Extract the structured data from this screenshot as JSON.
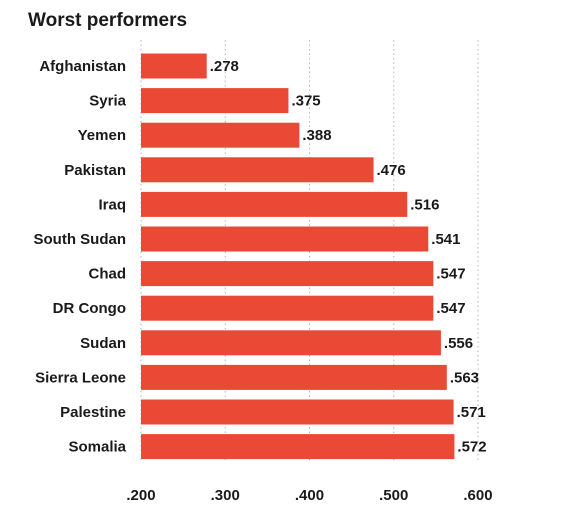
{
  "chart_data": {
    "type": "bar",
    "orientation": "horizontal",
    "title": "Worst performers",
    "xlabel": "",
    "ylabel": "",
    "categories": [
      "Afghanistan",
      "Syria",
      "Yemen",
      "Pakistan",
      "Iraq",
      "South Sudan",
      "Chad",
      "DR Congo",
      "Sudan",
      "Sierra Leone",
      "Palestine",
      "Somalia"
    ],
    "values": [
      0.278,
      0.375,
      0.388,
      0.476,
      0.516,
      0.541,
      0.547,
      0.547,
      0.556,
      0.563,
      0.571,
      0.572
    ],
    "value_labels": [
      ".278",
      ".375",
      ".388",
      ".476",
      ".516",
      ".541",
      ".547",
      ".547",
      ".556",
      ".563",
      ".571",
      ".572"
    ],
    "xlim": [
      0.2,
      0.6
    ],
    "x_ticks": [
      0.2,
      0.3,
      0.4,
      0.5,
      0.6
    ],
    "x_tick_labels": [
      ".200",
      ".300",
      ".400",
      ".500",
      ".600"
    ],
    "grid": true,
    "legend": "none",
    "bar_color": "#ea4a35"
  }
}
